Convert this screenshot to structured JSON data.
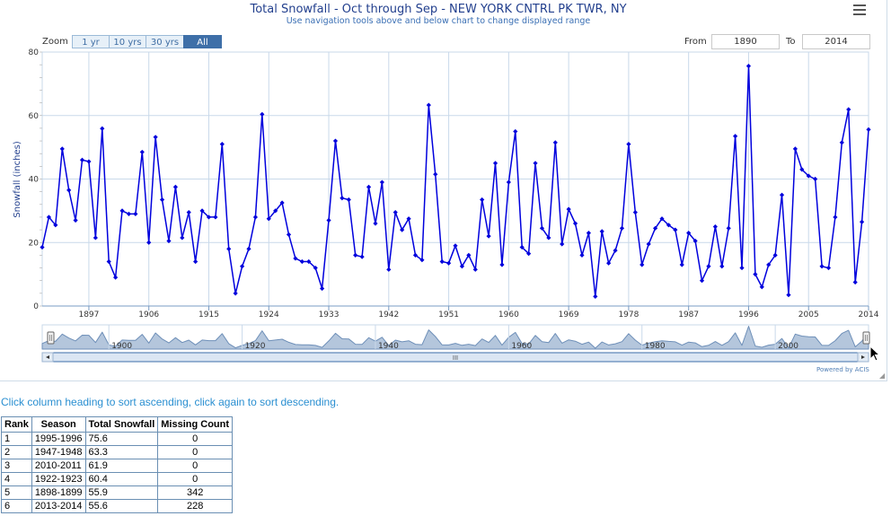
{
  "chart_title": "Total Snowfall - Oct through Sep - NEW YORK CNTRL PK TWR, NY",
  "chart_subtitle": "Use navigation tools above and below chart to change displayed range",
  "zoom": {
    "label": "Zoom",
    "buttons": [
      {
        "label": "1 yr",
        "active": false
      },
      {
        "label": "10 yrs",
        "active": false
      },
      {
        "label": "30 yrs",
        "active": false
      },
      {
        "label": "All",
        "active": true
      }
    ]
  },
  "range": {
    "from_label": "From",
    "from_value": "1890",
    "to_label": "To",
    "to_value": "2014"
  },
  "powered_by": "Powered by ACIS",
  "navigator": {
    "labels": [
      "1900",
      "1920",
      "1940",
      "1960",
      "1980",
      "2000"
    ],
    "scroll_grip": "III"
  },
  "sort_hint": "Click column heading to sort ascending, click again to sort descending.",
  "table": {
    "headers": [
      "Rank",
      "Season",
      "Total Snowfall",
      "Missing Count"
    ],
    "rows": [
      [
        "1",
        "1995-1996",
        "75.6",
        "0"
      ],
      [
        "2",
        "1947-1948",
        "63.3",
        "0"
      ],
      [
        "3",
        "2010-2011",
        "61.9",
        "0"
      ],
      [
        "4",
        "1922-1923",
        "60.4",
        "0"
      ],
      [
        "5",
        "1898-1899",
        "55.9",
        "342"
      ],
      [
        "6",
        "2013-2014",
        "55.6",
        "228"
      ]
    ]
  },
  "colors": {
    "series": "#0000dd",
    "navigator_fill": "#b4c6dc",
    "navigator_line": "#6e8fb8",
    "grid": "#c9d9ea",
    "title": "#23408e",
    "subtitle": "#3a6fb4"
  },
  "chart_data": {
    "type": "line",
    "title": "Total Snowfall - Oct through Sep - NEW YORK CNTRL PK TWR, NY",
    "subtitle": "Use navigation tools above and below chart to change displayed range",
    "xlabel": "",
    "ylabel": "Snowfall (inches)",
    "xlim": [
      1890,
      2014
    ],
    "ylim": [
      0,
      80
    ],
    "xticks": [
      "1897",
      "1906",
      "1915",
      "1924",
      "1933",
      "1942",
      "1951",
      "1960",
      "1969",
      "1978",
      "1987",
      "1996",
      "2005",
      "2014"
    ],
    "yticks": [
      0,
      20,
      40,
      60,
      80
    ],
    "grid": true,
    "series": [
      {
        "name": "",
        "x_start": 1890,
        "x_step": 1,
        "values": [
          18.5,
          28.0,
          25.5,
          49.5,
          36.5,
          27.0,
          46.0,
          45.5,
          21.5,
          55.9,
          14.0,
          9.0,
          30.0,
          29.0,
          29.0,
          48.5,
          20.0,
          53.2,
          33.5,
          20.5,
          37.5,
          21.5,
          29.5,
          14.0,
          30.0,
          28.0,
          28.0,
          51.0,
          18.0,
          4.0,
          12.5,
          18.0,
          28.0,
          60.4,
          27.5,
          30.0,
          32.5,
          22.5,
          15.0,
          14.0,
          14.0,
          12.0,
          5.5,
          27.0,
          52.0,
          34.0,
          33.5,
          16.0,
          15.5,
          37.5,
          26.0,
          39.0,
          11.5,
          29.5,
          24.0,
          27.5,
          16.0,
          14.5,
          63.3,
          41.5,
          14.0,
          13.5,
          19.0,
          12.5,
          16.0,
          11.5,
          33.5,
          22.0,
          45.0,
          13.0,
          39.0,
          55.0,
          18.5,
          16.5,
          45.0,
          24.5,
          21.5,
          51.5,
          19.5,
          30.5,
          26.0,
          16.0,
          23.0,
          3.0,
          23.5,
          13.5,
          17.5,
          24.5,
          51.0,
          29.5,
          13.0,
          19.5,
          24.5,
          27.5,
          25.5,
          24.0,
          13.0,
          23.0,
          20.5,
          8.0,
          12.5,
          25.0,
          12.5,
          24.5,
          53.5,
          12.0,
          75.6,
          10.0,
          6.0,
          13.0,
          16.0,
          35.0,
          3.5,
          49.5,
          43.0,
          41.0,
          40.0,
          12.5,
          12.0,
          28.0,
          51.5,
          61.9,
          7.5,
          26.5,
          55.6
        ]
      }
    ]
  }
}
